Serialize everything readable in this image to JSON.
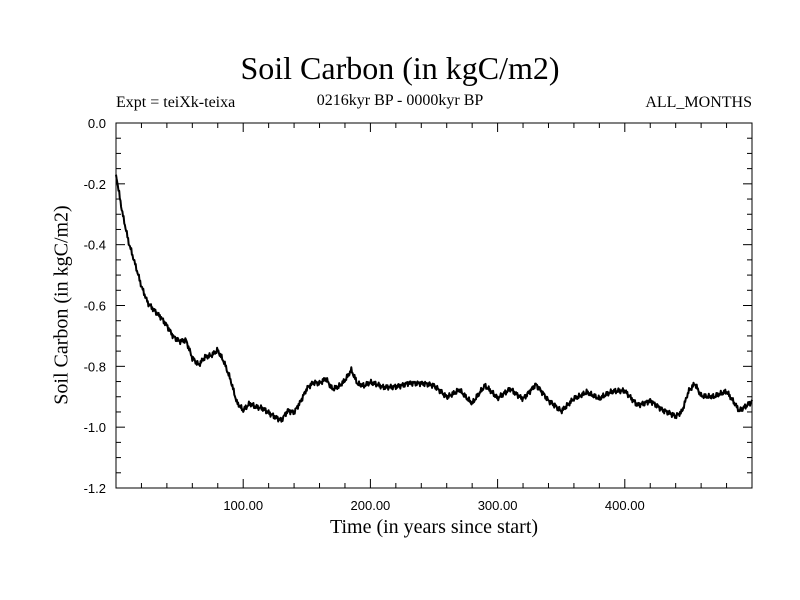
{
  "chart_data": {
    "type": "line",
    "title": "Soil Carbon (in kgC/m2)",
    "subtitle": "0216kyr BP - 0000kyr BP",
    "left_note": "Expt = teiXk-teixa",
    "right_note": "ALL_MONTHS",
    "xlabel": "Time (in years since start)",
    "ylabel": "Soil Carbon (in kgC/m2)",
    "xlim": [
      0,
      500
    ],
    "ylim": [
      -1.2,
      0.0
    ],
    "xticks": [
      100,
      200,
      300,
      400
    ],
    "xtick_labels": [
      "100.00",
      "200.00",
      "300.00",
      "400.00"
    ],
    "yticks": [
      0.0,
      -0.2,
      -0.4,
      -0.6,
      -0.8,
      -1.0,
      -1.2
    ],
    "ytick_labels": [
      "0.0",
      "-0.2",
      "-0.4",
      "-0.6",
      "-0.8",
      "-1.0",
      "-1.2"
    ],
    "grid": false,
    "series": [
      {
        "color": "#000000",
        "x": [
          0,
          5,
          10,
          15,
          20,
          25,
          30,
          35,
          40,
          45,
          50,
          55,
          60,
          65,
          70,
          75,
          80,
          85,
          90,
          95,
          100,
          105,
          110,
          115,
          120,
          125,
          130,
          135,
          140,
          145,
          150,
          155,
          160,
          165,
          170,
          175,
          180,
          185,
          190,
          195,
          200,
          210,
          220,
          230,
          240,
          250,
          260,
          270,
          280,
          290,
          300,
          310,
          320,
          330,
          340,
          350,
          360,
          370,
          380,
          390,
          400,
          410,
          420,
          430,
          440,
          445,
          450,
          455,
          460,
          470,
          480,
          490,
          500
        ],
        "y": [
          -0.17,
          -0.3,
          -0.4,
          -0.47,
          -0.54,
          -0.59,
          -0.61,
          -0.63,
          -0.66,
          -0.7,
          -0.72,
          -0.72,
          -0.78,
          -0.8,
          -0.77,
          -0.76,
          -0.74,
          -0.78,
          -0.84,
          -0.92,
          -0.95,
          -0.93,
          -0.94,
          -0.94,
          -0.95,
          -0.96,
          -0.97,
          -0.94,
          -0.95,
          -0.92,
          -0.88,
          -0.86,
          -0.86,
          -0.84,
          -0.87,
          -0.86,
          -0.84,
          -0.81,
          -0.86,
          -0.87,
          -0.86,
          -0.87,
          -0.86,
          -0.85,
          -0.86,
          -0.87,
          -0.9,
          -0.87,
          -0.92,
          -0.87,
          -0.91,
          -0.87,
          -0.9,
          -0.86,
          -0.92,
          -0.95,
          -0.9,
          -0.88,
          -0.91,
          -0.89,
          -0.88,
          -0.92,
          -0.91,
          -0.95,
          -0.97,
          -0.95,
          -0.88,
          -0.85,
          -0.89,
          -0.9,
          -0.89,
          -0.95,
          -0.91
        ]
      }
    ]
  }
}
